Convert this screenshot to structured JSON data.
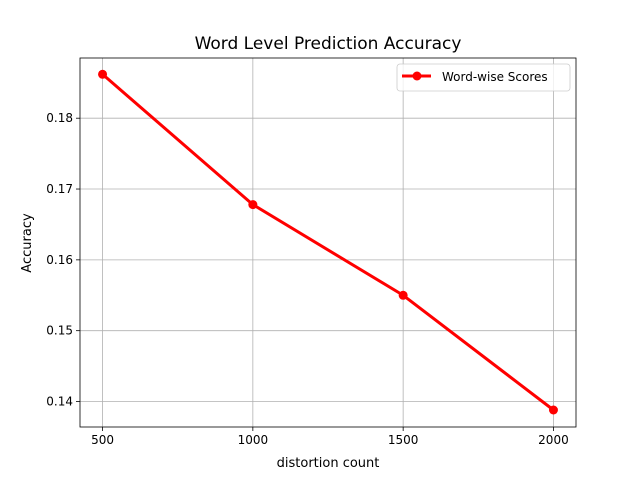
{
  "chart_data": {
    "type": "line",
    "title": "Word Level Prediction Accuracy",
    "xlabel": "distortion count",
    "ylabel": "Accuracy",
    "x": [
      500,
      1000,
      1500,
      2000
    ],
    "x_tick_labels": [
      "500",
      "1000",
      "1500",
      "2000"
    ],
    "y_ticks": [
      0.14,
      0.15,
      0.16,
      0.17,
      0.18
    ],
    "y_tick_labels": [
      "0.14",
      "0.15",
      "0.16",
      "0.17",
      "0.18"
    ],
    "xlim": [
      425,
      2075
    ],
    "ylim": [
      0.1364,
      0.1885
    ],
    "grid": true,
    "legend_position": "top-right",
    "series": [
      {
        "name": "Word-wise Scores",
        "color": "#ff0000",
        "marker": "circle",
        "values": [
          0.1862,
          0.1678,
          0.155,
          0.1388
        ]
      }
    ]
  }
}
